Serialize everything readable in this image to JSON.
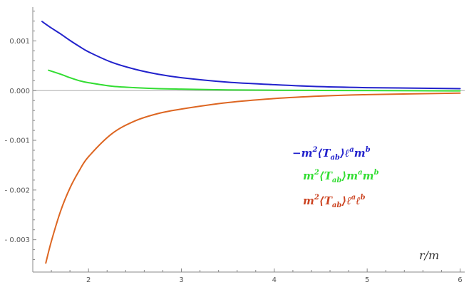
{
  "chart_data": {
    "type": "line",
    "title": "",
    "xlabel": "r/m",
    "ylabel": "",
    "xlim": [
      1.4,
      6.05
    ],
    "ylim": [
      -0.00365,
      0.00168
    ],
    "xticks": [
      {
        "value": 2,
        "label": "2"
      },
      {
        "value": 3,
        "label": "3"
      },
      {
        "value": 4,
        "label": "4"
      },
      {
        "value": 5,
        "label": "5"
      },
      {
        "value": 6,
        "label": "6"
      }
    ],
    "yticks": [
      {
        "value": 0.001,
        "label": "0.001"
      },
      {
        "value": 0.0,
        "label": "0.000"
      },
      {
        "value": -0.001,
        "label": "- 0.001"
      },
      {
        "value": -0.002,
        "label": "- 0.002"
      },
      {
        "value": -0.003,
        "label": "- 0.003"
      }
    ],
    "grid": false,
    "legend_position": "center-right",
    "series": [
      {
        "name": "−m²⟨T_ab⟩ℓᵃmᵇ",
        "color": "#2222cc",
        "x": [
          1.5,
          1.6,
          1.7,
          1.8,
          1.9,
          2.0,
          2.25,
          2.5,
          2.75,
          3.0,
          3.5,
          4.0,
          4.5,
          5.0,
          5.5,
          6.0
        ],
        "y": [
          0.00139,
          0.00126,
          0.00114,
          0.00101,
          0.00089,
          0.00078,
          0.00057,
          0.00043,
          0.00033,
          0.00026,
          0.00017,
          0.00012,
          8e-05,
          6e-05,
          5e-05,
          4e-05
        ]
      },
      {
        "name": "m²⟨T_ab⟩mᵃmᵇ",
        "color": "#33dd33",
        "x": [
          1.57,
          1.7,
          1.8,
          1.9,
          2.0,
          2.25,
          2.5,
          2.75,
          3.0,
          3.5,
          4.0,
          4.5,
          5.0,
          5.5,
          6.0
        ],
        "y": [
          0.00041,
          0.00033,
          0.00026,
          0.0002,
          0.00016,
          9e-05,
          6e-05,
          4e-05,
          3e-05,
          1.5e-05,
          8e-06,
          4e-06,
          1e-06,
          -2e-06,
          -5e-06
        ]
      },
      {
        "name": "m²⟨T_ab⟩ℓᵃℓᵇ",
        "color": "#dd6622",
        "x": [
          1.54,
          1.6,
          1.7,
          1.8,
          1.9,
          2.0,
          2.25,
          2.5,
          2.75,
          3.0,
          3.5,
          4.0,
          4.5,
          5.0,
          5.5,
          6.0
        ],
        "y": [
          -0.00347,
          -0.00303,
          -0.00242,
          -0.00196,
          -0.00161,
          -0.00133,
          -0.00087,
          -0.00061,
          -0.00046,
          -0.00037,
          -0.00024,
          -0.00016,
          -0.00011,
          -8e-05,
          -6.5e-05,
          -5e-05
        ]
      }
    ]
  }
}
